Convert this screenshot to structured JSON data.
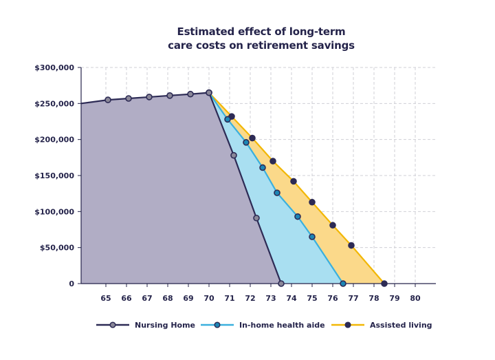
{
  "chart_data": {
    "type": "area",
    "title_lines": [
      "Estimated effect of long-term",
      "care costs on retirement savings"
    ],
    "xlabel": "",
    "ylabel": "",
    "x_ticks": [
      65,
      66,
      67,
      68,
      69,
      70,
      71,
      72,
      73,
      74,
      75,
      76,
      77,
      78,
      79,
      80
    ],
    "y_ticks": [
      {
        "value": 0,
        "label": "0"
      },
      {
        "value": 50000,
        "label": "$50,000"
      },
      {
        "value": 100000,
        "label": "$100,000"
      },
      {
        "value": 150000,
        "label": "$150,000"
      },
      {
        "value": 200000,
        "label": "$200,000"
      },
      {
        "value": 250000,
        "label": "$250,000"
      },
      {
        "value": 300000,
        "label": "$300,000"
      }
    ],
    "xlim": [
      63.8,
      81
    ],
    "ylim": [
      0,
      300000
    ],
    "grid": true,
    "legend_position": "bottom",
    "series": [
      {
        "name": "Assisted living",
        "line_color": "#f2b705",
        "fill_color": "#fbd98a",
        "marker_color": "#2d2b55",
        "points": [
          [
            70,
            265000
          ],
          [
            71.1,
            232000
          ],
          [
            72.1,
            202000
          ],
          [
            73.1,
            170000
          ],
          [
            74.1,
            142000
          ],
          [
            75,
            113000
          ],
          [
            76,
            81000
          ],
          [
            76.9,
            53000
          ],
          [
            78.5,
            0
          ]
        ]
      },
      {
        "name": "In-home health aide",
        "line_color": "#3ab0de",
        "fill_color": "#a9dff1",
        "marker_color": "#1c86b5",
        "points": [
          [
            70,
            265000
          ],
          [
            70.9,
            228000
          ],
          [
            71.8,
            196000
          ],
          [
            72.6,
            161000
          ],
          [
            73.3,
            126000
          ],
          [
            74.3,
            93000
          ],
          [
            75,
            65000
          ],
          [
            76.5,
            0
          ]
        ]
      },
      {
        "name": "Nursing Home",
        "line_color": "#2d2b55",
        "fill_color": "#b1adc5",
        "marker_color": "#8a8798",
        "points": [
          [
            63.8,
            250000
          ],
          [
            65.1,
            255000
          ],
          [
            66.1,
            257000
          ],
          [
            67.1,
            259000
          ],
          [
            68.1,
            261000
          ],
          [
            69.1,
            263000
          ],
          [
            70,
            265000
          ],
          [
            71.2,
            178000
          ],
          [
            72.3,
            91000
          ],
          [
            73.5,
            0
          ]
        ]
      }
    ],
    "legend": [
      {
        "name": "Nursing Home",
        "line_color": "#2d2b55",
        "marker_color": "#8a8798"
      },
      {
        "name": "In-home health aide",
        "line_color": "#3ab0de",
        "marker_color": "#1c86b5"
      },
      {
        "name": "Assisted living",
        "line_color": "#f2b705",
        "marker_color": "#2d2b55"
      }
    ]
  }
}
